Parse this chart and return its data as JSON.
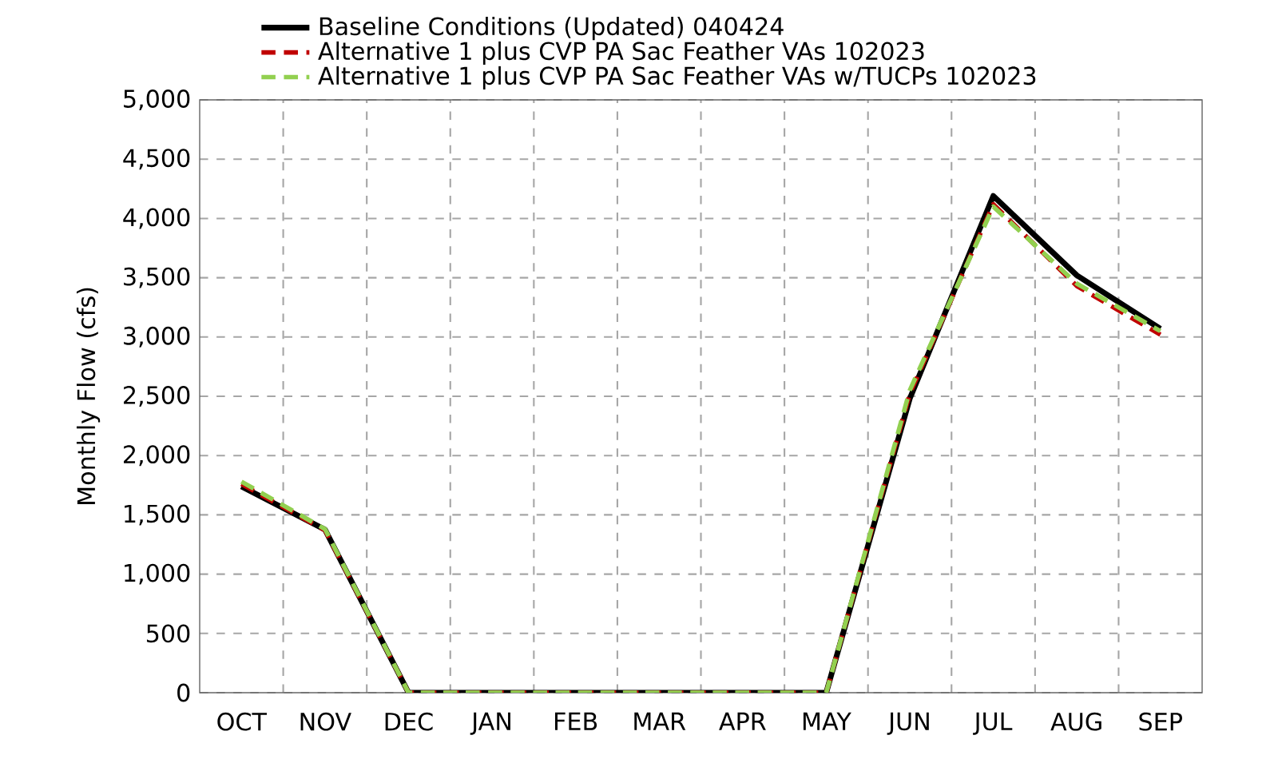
{
  "chart_data": {
    "type": "line",
    "ylabel": "Monthly Flow (cfs)",
    "categories": [
      "OCT",
      "NOV",
      "DEC",
      "JAN",
      "FEB",
      "MAR",
      "APR",
      "MAY",
      "JUN",
      "JUL",
      "AUG",
      "SEP"
    ],
    "series": [
      {
        "name": "Baseline Conditions (Updated) 040424",
        "color": "#000000",
        "line_style": "solid",
        "values": [
          1740,
          1375,
          0,
          0,
          0,
          0,
          0,
          0,
          2480,
          4190,
          3520,
          3070
        ]
      },
      {
        "name": "Alternative 1 plus CVP PA Sac Feather VAs 102023",
        "color": "#c00000",
        "line_style": "dashed",
        "values": [
          1760,
          1370,
          0,
          0,
          0,
          0,
          0,
          0,
          2520,
          4120,
          3430,
          3020
        ]
      },
      {
        "name": "Alternative 1 plus CVP PA Sac Feather VAs w/TUCPs 102023",
        "color": "#92d050",
        "line_style": "dashed",
        "values": [
          1780,
          1380,
          0,
          0,
          0,
          0,
          0,
          0,
          2550,
          4100,
          3450,
          3050
        ]
      }
    ],
    "ylim": [
      0,
      5000
    ],
    "yticks": [
      {
        "value": 0,
        "label": "0"
      },
      {
        "value": 500,
        "label": "500"
      },
      {
        "value": 1000,
        "label": "1,000"
      },
      {
        "value": 1500,
        "label": "1,500"
      },
      {
        "value": 2000,
        "label": "2,000"
      },
      {
        "value": 2500,
        "label": "2,500"
      },
      {
        "value": 3000,
        "label": "3,000"
      },
      {
        "value": 3500,
        "label": "3,500"
      },
      {
        "value": 4000,
        "label": "4,000"
      },
      {
        "value": 4500,
        "label": "4,500"
      },
      {
        "value": 5000,
        "label": "5,000"
      }
    ],
    "grid": true,
    "legend": "top",
    "marker": "none"
  }
}
